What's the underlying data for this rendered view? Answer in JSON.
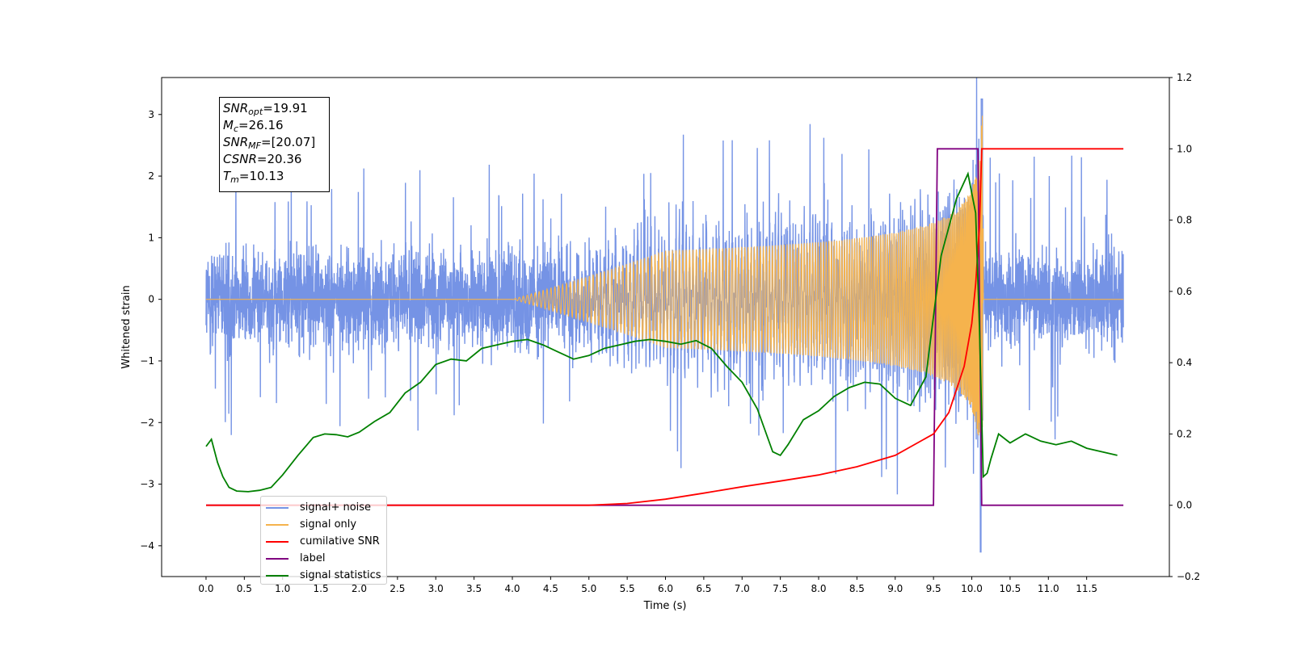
{
  "stats_box": {
    "lines": [
      {
        "var": "SNR",
        "sub": "opt",
        "value": "=19.91"
      },
      {
        "var": "M",
        "sub": "c",
        "value": "=26.16"
      },
      {
        "var": "SNR",
        "sub": "MF",
        "value": "=[20.07]"
      },
      {
        "var": "CSNR",
        "sub": "",
        "value": "=20.36"
      },
      {
        "var": "T",
        "sub": "m",
        "value": "=10.13"
      }
    ]
  },
  "chart_data": {
    "type": "line",
    "title": "",
    "xlabel": "Time (s)",
    "ylabel": "Whitened strain",
    "y2label": "",
    "xlim": [
      -0.58,
      12.58
    ],
    "ylim": [
      -4.5,
      3.6
    ],
    "y2lim": [
      -0.2,
      1.2
    ],
    "xticks": [
      "0.0",
      "0.5",
      "1.0",
      "1.5",
      "2.0",
      "2.5",
      "3.0",
      "3.5",
      "4.0",
      "4.5",
      "5.0",
      "5.5",
      "6.0",
      "6.5",
      "7.0",
      "7.5",
      "8.0",
      "8.5",
      "9.0",
      "9.5",
      "10.0",
      "10.5",
      "11.0",
      "11.5"
    ],
    "yticks": [
      "3",
      "2",
      "1",
      "0",
      "−1",
      "−2",
      "−3",
      "−4"
    ],
    "y2ticks": [
      "1.2",
      "1.0",
      "0.8",
      "0.6",
      "0.4",
      "0.2",
      "0.0",
      "−0.2"
    ],
    "grid": false,
    "legend_position": "lower-left",
    "series": [
      {
        "name": "signal+ noise",
        "axis": "left",
        "color": "#7593e5",
        "noise_envelope": {
          "upper_typical": 1.45,
          "lower_typical": -1.4,
          "spike_max": 3.25,
          "spike_min": -4.1
        },
        "x_range": [
          0.0,
          11.98
        ]
      },
      {
        "name": "signal only",
        "axis": "left",
        "color": "#f5b34d",
        "chirp_merger_time": 10.13,
        "peak_amplitude": 3.0,
        "x_range": [
          0.0,
          11.98
        ]
      },
      {
        "name": "cumilative SNR",
        "axis": "right",
        "color": "#ff0000",
        "x": [
          0.0,
          4.0,
          5.0,
          5.5,
          6.0,
          6.5,
          7.0,
          7.5,
          8.0,
          8.5,
          9.0,
          9.5,
          9.7,
          9.9,
          10.0,
          10.05,
          10.1,
          10.13,
          10.14,
          11.98
        ],
        "y": [
          0.0,
          0.0,
          0.0,
          0.005,
          0.017,
          0.034,
          0.052,
          0.068,
          0.085,
          0.108,
          0.14,
          0.2,
          0.26,
          0.39,
          0.51,
          0.62,
          0.78,
          1.0,
          1.0,
          1.0
        ]
      },
      {
        "name": "label",
        "axis": "right",
        "color": "#800080",
        "x": [
          0.0,
          9.5,
          9.55,
          10.08,
          10.13,
          11.98
        ],
        "y": [
          0.0,
          0.0,
          1.0,
          1.0,
          0.0,
          0.0
        ]
      },
      {
        "name": "signal statistics",
        "axis": "right",
        "color": "#008000",
        "x": [
          0.0,
          0.07,
          0.15,
          0.22,
          0.3,
          0.4,
          0.55,
          0.7,
          0.85,
          1.0,
          1.2,
          1.4,
          1.55,
          1.7,
          1.85,
          2.0,
          2.2,
          2.4,
          2.6,
          2.8,
          3.0,
          3.2,
          3.4,
          3.6,
          3.8,
          4.0,
          4.2,
          4.4,
          4.6,
          4.8,
          5.0,
          5.2,
          5.4,
          5.6,
          5.8,
          6.0,
          6.2,
          6.4,
          6.6,
          6.8,
          7.0,
          7.2,
          7.3,
          7.4,
          7.5,
          7.6,
          7.8,
          8.0,
          8.2,
          8.4,
          8.6,
          8.8,
          9.0,
          9.2,
          9.4,
          9.6,
          9.8,
          9.95,
          10.05,
          10.1,
          10.15,
          10.2,
          10.25,
          10.35,
          10.5,
          10.7,
          10.9,
          11.1,
          11.3,
          11.5,
          11.7,
          11.9
        ],
        "y": [
          0.165,
          0.185,
          0.12,
          0.08,
          0.05,
          0.04,
          0.038,
          0.042,
          0.05,
          0.085,
          0.14,
          0.19,
          0.2,
          0.198,
          0.192,
          0.205,
          0.235,
          0.26,
          0.315,
          0.345,
          0.395,
          0.41,
          0.405,
          0.44,
          0.45,
          0.46,
          0.465,
          0.45,
          0.43,
          0.41,
          0.42,
          0.44,
          0.45,
          0.46,
          0.465,
          0.46,
          0.452,
          0.462,
          0.44,
          0.39,
          0.345,
          0.27,
          0.21,
          0.15,
          0.14,
          0.17,
          0.24,
          0.265,
          0.305,
          0.33,
          0.345,
          0.34,
          0.3,
          0.28,
          0.36,
          0.7,
          0.86,
          0.93,
          0.82,
          0.5,
          0.08,
          0.09,
          0.13,
          0.2,
          0.175,
          0.2,
          0.18,
          0.17,
          0.18,
          0.16,
          0.15,
          0.14
        ]
      }
    ]
  }
}
